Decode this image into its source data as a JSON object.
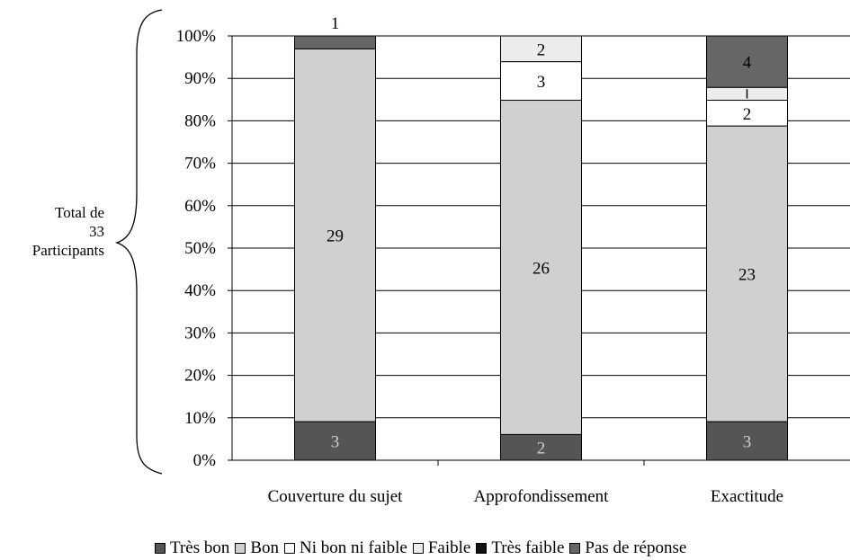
{
  "chart_data": {
    "type": "bar",
    "stacked": true,
    "normalized_percent": true,
    "categories": [
      "Couverture du sujet",
      "Approfondissement",
      "Exactitude"
    ],
    "series": [
      {
        "name": "Très bon",
        "values": [
          3,
          2,
          3
        ],
        "color": "#555555",
        "label_color": "#cfcfcf"
      },
      {
        "name": "Bon",
        "values": [
          29,
          26,
          23
        ],
        "color": "#d0d0d0",
        "label_color": "#000000"
      },
      {
        "name": "Ni bon ni faible",
        "values": [
          0,
          3,
          2
        ],
        "color": "#ffffff",
        "label_color": "#000000"
      },
      {
        "name": "Faible",
        "values": [
          0,
          2,
          1
        ],
        "color": "#ececec",
        "label_color": "#000000"
      },
      {
        "name": "Très faible",
        "values": [
          0,
          0,
          0
        ],
        "color": "#111111",
        "label_color": "#ffffff"
      },
      {
        "name": "Pas de réponse",
        "values": [
          1,
          0,
          4
        ],
        "color": "#666666",
        "label_color": "#000000"
      }
    ],
    "yticks": [
      "0%",
      "10%",
      "20%",
      "30%",
      "40%",
      "50%",
      "60%",
      "70%",
      "80%",
      "90%",
      "100%"
    ],
    "ylim": [
      0,
      100
    ],
    "grid": true,
    "legend_position": "bottom"
  },
  "annotation": {
    "line1": "Total de",
    "line2": "33",
    "line3": "Participants"
  }
}
